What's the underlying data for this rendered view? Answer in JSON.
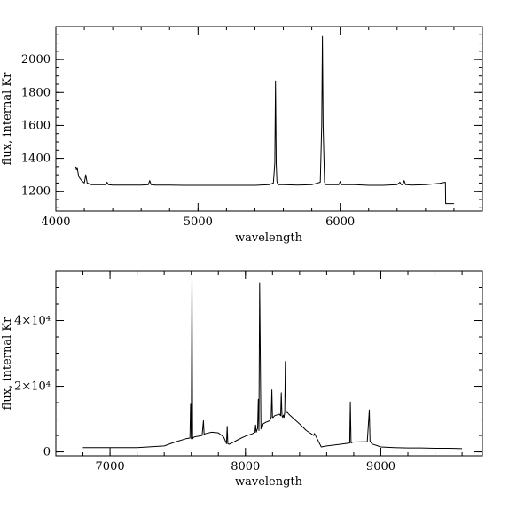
{
  "chart_data": [
    {
      "type": "line",
      "xlabel": "wavelength",
      "ylabel": "flux, internal Kr",
      "xlim": [
        4000,
        7000
      ],
      "ylim": [
        1080,
        2200
      ],
      "x_ticks": [
        {
          "value": 4000,
          "label": "4000"
        },
        {
          "value": 5000,
          "label": "5000"
        },
        {
          "value": 6000,
          "label": "6000"
        }
      ],
      "x_minor_step": 200,
      "y_ticks": [
        {
          "value": 1200,
          "label": "1200"
        },
        {
          "value": 1400,
          "label": "1400"
        },
        {
          "value": 1600,
          "label": "1600"
        },
        {
          "value": 1800,
          "label": "1800"
        },
        {
          "value": 2000,
          "label": "2000"
        }
      ],
      "y_minor_step": 50,
      "series": [
        {
          "x": [
            4140,
            4145,
            4150,
            4160,
            4180,
            4200,
            4210,
            4220,
            4250,
            4300,
            4350,
            4360,
            4370,
            4400,
            4500,
            4600,
            4650,
            4660,
            4670,
            4700,
            4800,
            4900,
            5000,
            5100,
            5200,
            5300,
            5400,
            5500,
            5530,
            5540,
            5545,
            5550,
            5555,
            5560,
            5570,
            5600,
            5700,
            5800,
            5860,
            5870,
            5875,
            5880,
            5890,
            5900,
            5950,
            5990,
            6000,
            6010,
            6050,
            6100,
            6200,
            6300,
            6400,
            6420,
            6430,
            6440,
            6450,
            6460,
            6470,
            6500,
            6600,
            6700,
            6740,
            6742,
            6745,
            6760,
            6800
          ],
          "y": [
            1350,
            1330,
            1345,
            1290,
            1265,
            1250,
            1300,
            1250,
            1240,
            1240,
            1240,
            1255,
            1240,
            1238,
            1238,
            1238,
            1240,
            1265,
            1240,
            1238,
            1238,
            1236,
            1236,
            1236,
            1236,
            1236,
            1236,
            1240,
            1250,
            1370,
            1870,
            1370,
            1260,
            1245,
            1240,
            1240,
            1238,
            1240,
            1255,
            1600,
            2140,
            1600,
            1255,
            1240,
            1240,
            1240,
            1260,
            1240,
            1240,
            1240,
            1236,
            1236,
            1240,
            1255,
            1240,
            1240,
            1265,
            1240,
            1240,
            1238,
            1240,
            1248,
            1255,
            1125,
            1125,
            1125,
            1125
          ]
        }
      ]
    },
    {
      "type": "line",
      "xlabel": "wavelength",
      "ylabel": "flux, internal Kr",
      "xlim": [
        6600,
        9750
      ],
      "ylim": [
        -1200,
        55000
      ],
      "x_ticks": [
        {
          "value": 7000,
          "label": "7000"
        },
        {
          "value": 8000,
          "label": "8000"
        },
        {
          "value": 9000,
          "label": "9000"
        }
      ],
      "x_minor_step": 200,
      "y_ticks": [
        {
          "value": 0,
          "label": "0"
        },
        {
          "value": 20000,
          "label": "2×10⁴"
        },
        {
          "value": 40000,
          "label": "4×10⁴"
        }
      ],
      "y_minor_step": 5000,
      "series": [
        {
          "x": [
            6800,
            7000,
            7200,
            7400,
            7480,
            7560,
            7590,
            7595,
            7600,
            7605,
            7610,
            7615,
            7620,
            7640,
            7680,
            7690,
            7695,
            7700,
            7710,
            7750,
            7800,
            7840,
            7860,
            7865,
            7870,
            7880,
            7900,
            7950,
            8000,
            8050,
            8070,
            8075,
            8080,
            8090,
            8095,
            8100,
            8105,
            8115,
            8120,
            8125,
            8130,
            8150,
            8180,
            8190,
            8195,
            8200,
            8205,
            8215,
            8250,
            8260,
            8265,
            8270,
            8275,
            8280,
            8285,
            8290,
            8295,
            8300,
            8305,
            8310,
            8320,
            8400,
            8450,
            8505,
            8510,
            8515,
            8530,
            8560,
            8600,
            8700,
            8770,
            8775,
            8780,
            8785,
            8790,
            8800,
            8900,
            8915,
            8920,
            8925,
            8935,
            9000,
            9100,
            9200,
            9300,
            9400,
            9500,
            9600
          ],
          "y": [
            1300,
            1300,
            1300,
            1800,
            3000,
            4000,
            4200,
            14500,
            4000,
            53500,
            4000,
            4300,
            4500,
            4700,
            5000,
            9500,
            5200,
            5500,
            5600,
            6000,
            5800,
            4500,
            2500,
            7800,
            2500,
            2300,
            2700,
            3800,
            4800,
            5500,
            6000,
            8200,
            6000,
            7200,
            16000,
            6500,
            51500,
            7000,
            8000,
            7500,
            8500,
            9000,
            9500,
            10500,
            18900,
            10500,
            10500,
            11000,
            11500,
            11000,
            18000,
            11000,
            10500,
            11200,
            10500,
            12000,
            27500,
            12000,
            12000,
            12000,
            11500,
            8500,
            6500,
            5000,
            5600,
            5200,
            4000,
            1500,
            1800,
            2300,
            2700,
            15200,
            2700,
            2800,
            2900,
            3000,
            3100,
            12800,
            3200,
            3000,
            2400,
            1500,
            1300,
            1200,
            1200,
            1100,
            1100,
            1000
          ]
        }
      ]
    }
  ]
}
